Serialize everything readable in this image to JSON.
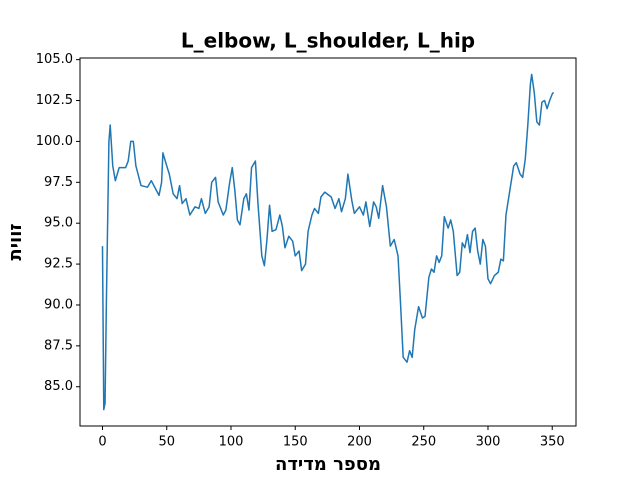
{
  "chart_data": {
    "type": "line",
    "title": "L_elbow, L_shoulder, L_hip",
    "x_label": "מספר מדידה",
    "y_label": "זווית",
    "x": [
      0,
      1,
      2,
      3,
      5,
      6,
      8,
      10,
      13,
      18,
      20,
      22,
      24,
      26,
      30,
      35,
      38,
      42,
      44,
      46,
      47,
      50,
      52,
      55,
      58,
      60,
      62,
      65,
      68,
      72,
      75,
      77,
      80,
      83,
      85,
      88,
      90,
      94,
      96,
      99,
      101,
      103,
      105,
      107,
      110,
      112,
      114,
      116,
      119,
      121,
      124,
      126,
      128,
      130,
      132,
      135,
      138,
      140,
      142,
      145,
      148,
      150,
      153,
      155,
      158,
      160,
      163,
      165,
      168,
      170,
      173,
      178,
      181,
      184,
      186,
      189,
      191,
      194,
      196,
      200,
      203,
      205,
      208,
      211,
      213,
      215,
      218,
      221,
      224,
      227,
      230,
      232,
      234,
      237,
      239,
      241,
      243,
      246,
      249,
      251,
      254,
      256,
      258,
      260,
      262,
      264,
      266,
      269,
      271,
      273,
      276,
      278,
      280,
      282,
      284,
      286,
      288,
      290,
      292,
      294,
      296,
      298,
      300,
      302,
      305,
      308,
      310,
      312,
      314,
      316,
      318,
      320,
      322,
      325,
      327,
      329,
      331,
      333,
      334,
      336,
      338,
      340,
      342,
      344,
      346,
      348,
      350,
      351
    ],
    "series": [
      {
        "name": "L_elbow, L_shoulder, L_hip",
        "color": "#1f77b4",
        "values": [
          93.6,
          83.6,
          84,
          90,
          100,
          101,
          98.5,
          97.6,
          98.4,
          98.4,
          98.8,
          100,
          100,
          98.5,
          97.3,
          97.2,
          97.6,
          97.0,
          96.7,
          97.5,
          99.3,
          98.5,
          98,
          96.8,
          96.5,
          97.3,
          96.2,
          96.5,
          95.5,
          96.0,
          95.9,
          96.5,
          95.6,
          96,
          97.5,
          97.8,
          96.3,
          95.5,
          95.8,
          97.5,
          98.4,
          97,
          95.2,
          94.9,
          96.5,
          96.8,
          95.8,
          98.4,
          98.8,
          96.2,
          93,
          92.4,
          94,
          96.1,
          94.5,
          94.6,
          95.5,
          94.8,
          93.5,
          94.2,
          93.9,
          93,
          93.3,
          92.1,
          92.5,
          94.5,
          95.5,
          95.9,
          95.6,
          96.6,
          96.9,
          96.6,
          95.9,
          96.5,
          95.7,
          96.5,
          98,
          96.4,
          95.6,
          96,
          95.5,
          96.3,
          94.8,
          96.3,
          96,
          95.3,
          97.3,
          96,
          93.6,
          94,
          93,
          90,
          86.8,
          86.5,
          87.2,
          86.8,
          88.5,
          89.9,
          89.2,
          89.3,
          91.7,
          92.2,
          92,
          93,
          92.6,
          93,
          95.4,
          94.7,
          95.2,
          94.5,
          91.8,
          92,
          93.8,
          93.5,
          94.3,
          93.2,
          94.5,
          94.7,
          93.3,
          92.5,
          94,
          93.6,
          91.6,
          91.3,
          91.8,
          92,
          92.8,
          92.7,
          95.5,
          96.5,
          97.5,
          98.5,
          98.7,
          98,
          97.8,
          98.9,
          101,
          103.5,
          104.1,
          103,
          101.2,
          101,
          102.4,
          102.5,
          102,
          102.5,
          102.9,
          103
        ]
      }
    ],
    "xlim": [
      -17.5,
      368.5
    ],
    "ylim": [
      82.6,
      105.1
    ],
    "xticks": [
      0,
      50,
      100,
      150,
      200,
      250,
      300,
      350
    ],
    "yticks": [
      {
        "value": 85,
        "label": "85.0"
      },
      87.5,
      {
        "value": 90,
        "label": "90.0"
      },
      92.5,
      {
        "value": 95,
        "label": "95.0"
      },
      97.5,
      {
        "value": 100,
        "label": "100.0"
      },
      102.5,
      {
        "value": 105,
        "label": "105.0"
      }
    ]
  }
}
